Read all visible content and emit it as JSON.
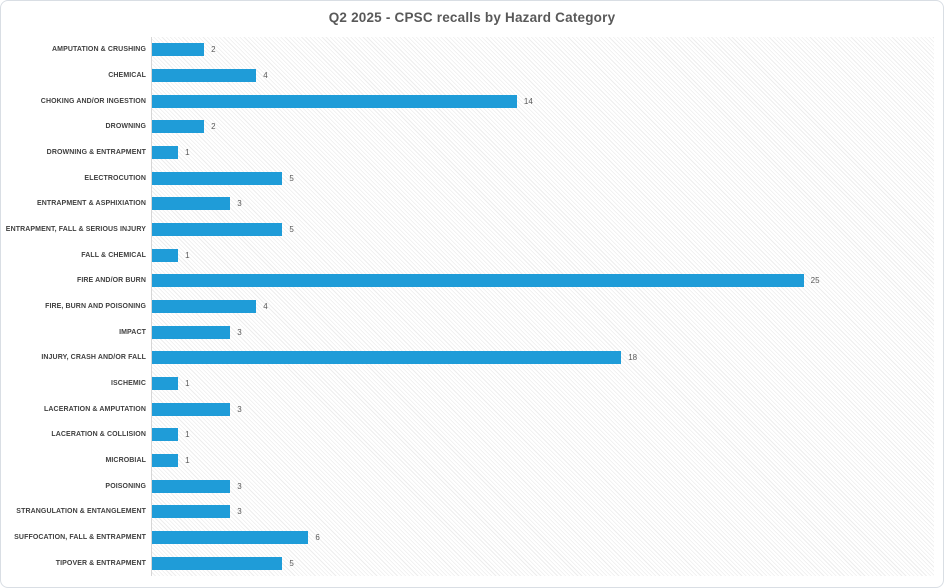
{
  "chart_data": {
    "type": "bar",
    "orientation": "horizontal",
    "title": "Q2 2025 - CPSC recalls by Hazard Category",
    "categories": [
      "AMPUTATION & CRUSHING",
      "CHEMICAL",
      "CHOKING AND/OR INGESTION",
      "DROWNING",
      "DROWNING & ENTRAPMENT",
      "ELECTROCUTION",
      "ENTRAPMENT & ASPHIXIATION",
      "ENTRAPMENT, FALL & SERIOUS INJURY",
      "FALL & CHEMICAL",
      "FIRE AND/OR BURN",
      "FIRE, BURN AND POISONING",
      "IMPACT",
      "INJURY, CRASH AND/OR FALL",
      "ISCHEMIC",
      "LACERATION & AMPUTATION",
      "LACERATION & COLLISION",
      "MICROBIAL",
      "POISONING",
      "STRANGULATION & ENTANGLEMENT",
      "SUFFOCATION, FALL & ENTRAPMENT",
      "TIPOVER & ENTRAPMENT"
    ],
    "values": [
      2,
      4,
      14,
      2,
      1,
      5,
      3,
      5,
      1,
      25,
      4,
      3,
      18,
      1,
      3,
      1,
      1,
      3,
      3,
      6,
      5
    ],
    "xlabel": "",
    "ylabel": "",
    "xlim": [
      0,
      30
    ],
    "grid": false,
    "legend": false,
    "data_labels": true,
    "colors": {
      "bar": "#1f9cd8",
      "title_text": "#595959",
      "category_text": "#3f3f3f",
      "value_text": "#595959",
      "axis_line": "#d6d6d6",
      "chart_border": "#d9dee4",
      "hatch_line": "#ededed",
      "background": "#ffffff"
    }
  }
}
